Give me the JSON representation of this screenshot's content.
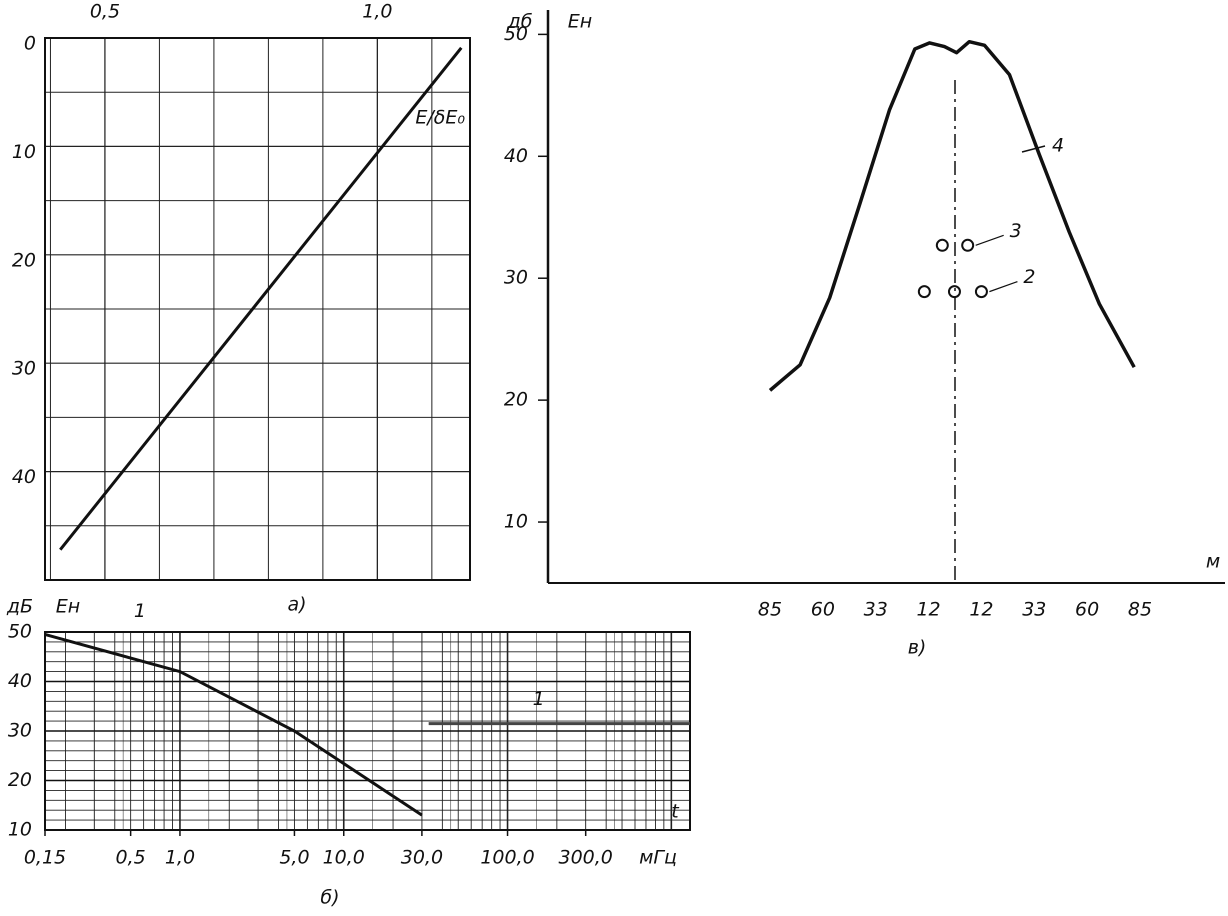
{
  "chart_data": [
    {
      "type": "line",
      "caption": "а)",
      "y_inverted": true,
      "grid": true,
      "xlim": [
        0.39,
        1.17
      ],
      "xticks": [
        {
          "value": 0.5,
          "label": "0,5"
        },
        {
          "value": 1.0,
          "label": "1,0"
        }
      ],
      "ylim": [
        0,
        50
      ],
      "yticks": [
        0,
        10,
        20,
        30,
        40
      ],
      "series": [
        {
          "name": "E/δE₀",
          "color": "#111111",
          "x": [
            0.418,
            1.154
          ],
          "values": [
            47.2,
            0.9
          ]
        }
      ]
    },
    {
      "type": "line",
      "caption": "б)",
      "log_x": true,
      "grid": true,
      "y_label": "дБ",
      "y_label2": "Eн",
      "x_label": "t",
      "x_unit": "мГц",
      "xlim": [
        0.15,
        1300
      ],
      "xticks": [
        {
          "value": 0.15,
          "label": "0,15"
        },
        {
          "value": 0.5,
          "label": "0,5"
        },
        {
          "value": 1.0,
          "label": "1,0"
        },
        {
          "value": 5.0,
          "label": "5,0"
        },
        {
          "value": 10.0,
          "label": "10,0"
        },
        {
          "value": 30.0,
          "label": "30,0"
        },
        {
          "value": 100.0,
          "label": "100,0"
        },
        {
          "value": 300.0,
          "label": "300,0"
        }
      ],
      "ylim": [
        10,
        50
      ],
      "yticks": [
        10,
        20,
        30,
        40,
        50
      ],
      "series": [
        {
          "name": "1",
          "color": "#111111",
          "x": [
            0.15,
            1.0,
            5.0,
            30.0
          ],
          "values": [
            49.5,
            42,
            30,
            13
          ]
        },
        {
          "name": "1",
          "color": "#444444",
          "x": [
            33,
            1300
          ],
          "values": [
            31.5,
            31.5
          ]
        }
      ]
    },
    {
      "type": "line",
      "caption": "в)",
      "y_label": "дб",
      "y_label2": "Eн",
      "x_label": "м",
      "categories": [
        "85",
        "60",
        "33",
        "12",
        "12",
        "33",
        "60",
        "85"
      ],
      "ylim": [
        5,
        52
      ],
      "yticks": [
        10,
        20,
        30,
        40,
        50
      ],
      "series": [
        {
          "name": "4",
          "color": "#111111",
          "x": [
            0,
            0.57,
            1.13,
            1.7,
            2.26,
            2.74,
            3.02,
            3.3,
            3.53,
            3.77,
            4.06,
            4.53,
            5.09,
            5.66,
            6.23,
            6.89
          ],
          "values": [
            20.8,
            22.9,
            28.4,
            36.1,
            43.8,
            48.8,
            49.3,
            49,
            48.5,
            49.4,
            49.1,
            46.7,
            40.2,
            33.8,
            27.9,
            22.7
          ]
        },
        {
          "name": "3",
          "color": "#111111",
          "markers": true,
          "x": [
            3.26,
            3.74
          ],
          "values": [
            32.7,
            32.7
          ]
        },
        {
          "name": "2",
          "color": "#111111",
          "markers": true,
          "x": [
            2.92,
            3.49,
            4.0
          ],
          "values": [
            28.9,
            28.9,
            28.9
          ]
        }
      ]
    }
  ]
}
